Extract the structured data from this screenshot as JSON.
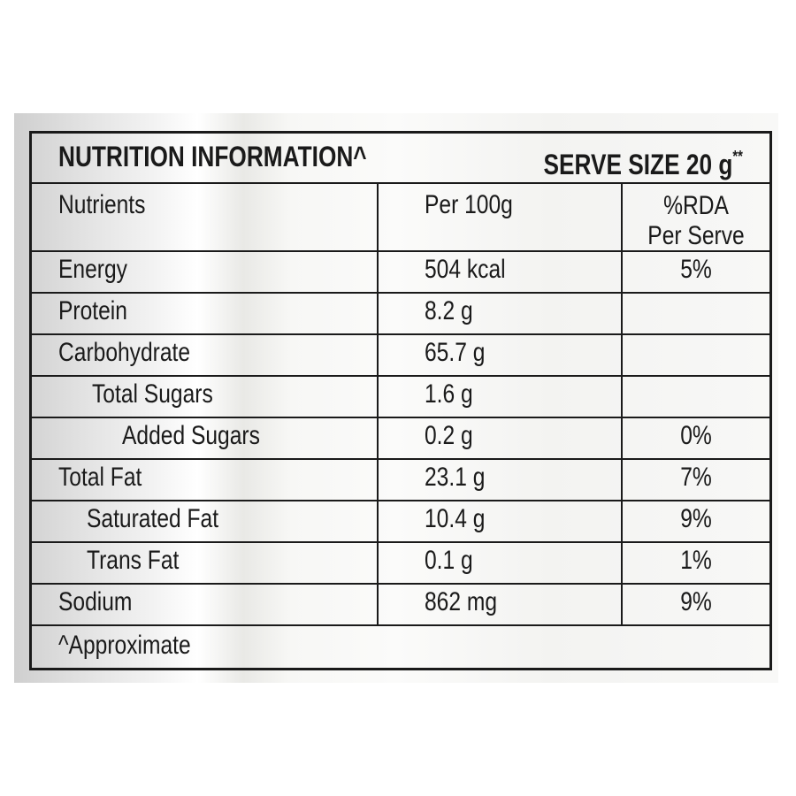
{
  "title": "NUTRITION INFORMATION^",
  "serve_size": "SERVE SIZE 20 g",
  "serve_size_mark": "**",
  "headers": {
    "nutrients": "Nutrients",
    "per100": "Per 100g",
    "rda_line1": "%RDA",
    "rda_line2": "Per Serve"
  },
  "rows": [
    {
      "name": "Energy",
      "per100": "504 kcal",
      "rda": "5%"
    },
    {
      "name": "Protein",
      "per100": "8.2 g",
      "rda": ""
    },
    {
      "name": "Carbohydrate",
      "per100": "65.7 g",
      "rda": ""
    },
    {
      "name": "Total Sugars",
      "per100": "1.6 g",
      "rda": ""
    },
    {
      "name": "Added Sugars",
      "per100": "0.2 g",
      "rda": "0%"
    },
    {
      "name": "Total Fat",
      "per100": "23.1 g",
      "rda": "7%"
    },
    {
      "name": "Saturated Fat",
      "per100": "10.4 g",
      "rda": "9%"
    },
    {
      "name": "Trans Fat",
      "per100": "0.1 g",
      "rda": "1%"
    },
    {
      "name": "Sodium",
      "per100": "862 mg",
      "rda": "9%"
    }
  ],
  "footnote": "^Approximate"
}
